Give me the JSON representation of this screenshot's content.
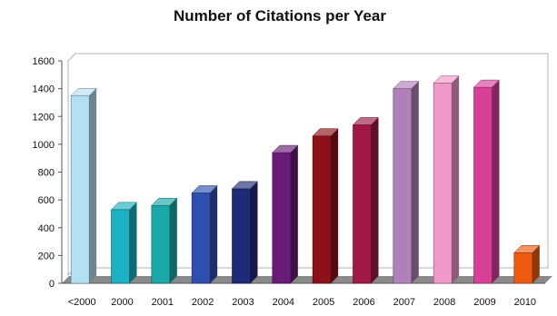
{
  "chart_data": {
    "type": "bar",
    "title": "Number of Citations per Year",
    "xlabel": "",
    "ylabel": "",
    "categories": [
      "<2000",
      "2000",
      "2001",
      "2002",
      "2003",
      "2004",
      "2005",
      "2006",
      "2007",
      "2008",
      "2009",
      "2010"
    ],
    "values": [
      1350,
      530,
      560,
      650,
      680,
      940,
      1060,
      1140,
      1400,
      1440,
      1410,
      220
    ],
    "ylim": [
      0,
      1600
    ],
    "yticks": [
      "0",
      "200",
      "400",
      "600",
      "800",
      "1000",
      "1200",
      "1400",
      "1600"
    ],
    "grid": false,
    "legend": "none",
    "bar_colors": [
      "#b3e0f2",
      "#1ab2c2",
      "#1aa8a8",
      "#2e4fb0",
      "#1f2a78",
      "#6a1a78",
      "#8c1018",
      "#a01848",
      "#b080b8",
      "#f098c8",
      "#d84098",
      "#ee5a10"
    ],
    "floor_color": "#8a8a8a",
    "wall_color": "#f2f2f2"
  }
}
